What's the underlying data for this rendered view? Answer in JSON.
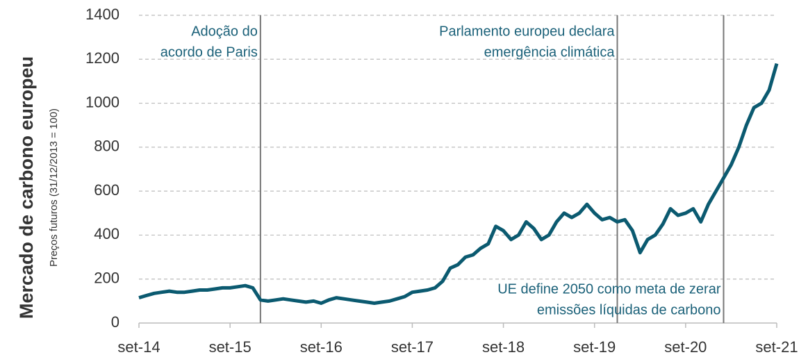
{
  "chart_data": {
    "type": "line",
    "title": "Mercado de carbono europeu",
    "subtitle": "Preços futuros (31/12/2013 = 100)",
    "x": [
      "set-14",
      "out-14",
      "nov-14",
      "dez-14",
      "jan-15",
      "fev-15",
      "mar-15",
      "abr-15",
      "mai-15",
      "jun-15",
      "jul-15",
      "ago-15",
      "set-15",
      "out-15",
      "nov-15",
      "dez-15",
      "jan-16",
      "fev-16",
      "mar-16",
      "abr-16",
      "mai-16",
      "jun-16",
      "jul-16",
      "ago-16",
      "set-16",
      "out-16",
      "nov-16",
      "dez-16",
      "jan-17",
      "fev-17",
      "mar-17",
      "abr-17",
      "mai-17",
      "jun-17",
      "jul-17",
      "ago-17",
      "set-17",
      "out-17",
      "nov-17",
      "dez-17",
      "jan-18",
      "fev-18",
      "mar-18",
      "abr-18",
      "mai-18",
      "jun-18",
      "jul-18",
      "ago-18",
      "set-18",
      "out-18",
      "nov-18",
      "dez-18",
      "jan-19",
      "fev-19",
      "mar-19",
      "abr-19",
      "mai-19",
      "jun-19",
      "jul-19",
      "ago-19",
      "set-19",
      "out-19",
      "nov-19",
      "dez-19",
      "jan-20",
      "fev-20",
      "mar-20",
      "abr-20",
      "mai-20",
      "jun-20",
      "jul-20",
      "ago-20",
      "set-20",
      "out-20",
      "nov-20",
      "dez-20",
      "jan-21",
      "fev-21",
      "mar-21",
      "abr-21",
      "mai-21",
      "jun-21",
      "jul-21",
      "ago-21",
      "set-21"
    ],
    "values": [
      115,
      125,
      135,
      140,
      145,
      140,
      140,
      145,
      150,
      150,
      155,
      160,
      160,
      165,
      170,
      160,
      105,
      100,
      105,
      110,
      105,
      100,
      95,
      100,
      90,
      105,
      115,
      110,
      105,
      100,
      95,
      90,
      95,
      100,
      110,
      120,
      140,
      145,
      150,
      160,
      190,
      250,
      265,
      300,
      310,
      340,
      360,
      440,
      420,
      380,
      400,
      460,
      430,
      380,
      400,
      460,
      500,
      480,
      500,
      540,
      500,
      470,
      480,
      460,
      470,
      420,
      320,
      380,
      400,
      450,
      520,
      490,
      500,
      520,
      460,
      540,
      600,
      660,
      720,
      800,
      900,
      980,
      1000,
      1060,
      1180
    ],
    "color": "#0b5a70",
    "xticks": [
      "set-14",
      "set-15",
      "set-16",
      "set-17",
      "set-18",
      "set-19",
      "set-20",
      "set-21"
    ],
    "ylim": [
      0,
      1400
    ],
    "yticks": [
      0,
      200,
      400,
      600,
      800,
      1000,
      1200,
      1400
    ],
    "grid": true,
    "annotations": [
      {
        "x": "jan-16",
        "text": [
          "Adoção do",
          "acordo de Paris"
        ],
        "position": "top"
      },
      {
        "x": "dez-19",
        "text": [
          "Parlamento europeu declara",
          "emergência climática"
        ],
        "position": "top"
      },
      {
        "x": "fev-21",
        "text": [
          "UE define 2050 como meta de zerar",
          "emissões líquidas de carbono"
        ],
        "position": "bottom"
      }
    ]
  }
}
